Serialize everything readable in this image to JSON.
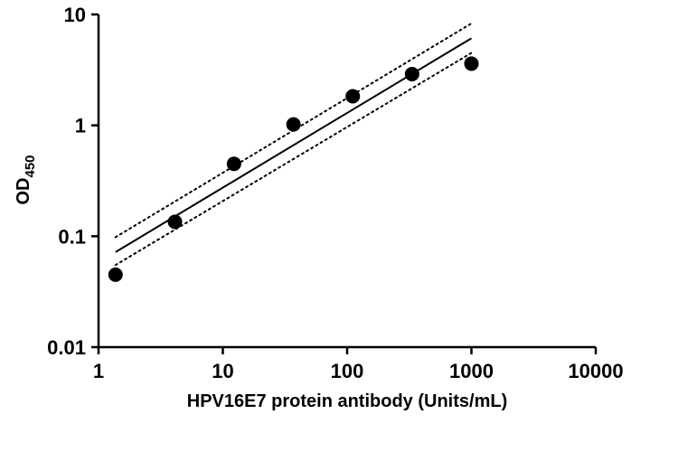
{
  "chart_data": {
    "type": "scatter",
    "title": "",
    "xlabel": "HPV16E7 protein antibody (Units/mL)",
    "ylabel_main": "OD",
    "ylabel_sub": "450",
    "xscale": "log",
    "yscale": "log",
    "xlim": [
      1,
      10000
    ],
    "ylim": [
      0.01,
      10
    ],
    "xticks": [
      {
        "value": 1,
        "label": "1"
      },
      {
        "value": 10,
        "label": "10"
      },
      {
        "value": 100,
        "label": "100"
      },
      {
        "value": 1000,
        "label": "1000"
      },
      {
        "value": 10000,
        "label": "10000"
      }
    ],
    "yticks": [
      {
        "value": 0.01,
        "label": "0.01"
      },
      {
        "value": 0.1,
        "label": "0.1"
      },
      {
        "value": 1,
        "label": "1"
      },
      {
        "value": 10,
        "label": "10"
      }
    ],
    "grid": false,
    "legend": "none",
    "points": {
      "x": [
        1.37,
        4.12,
        12.3,
        37.0,
        111,
        333,
        1000
      ],
      "y": [
        0.045,
        0.135,
        0.45,
        1.02,
        1.83,
        2.9,
        3.6
      ]
    },
    "fit_line": {
      "x": [
        1.37,
        1000
      ],
      "y": [
        0.072,
        6.1
      ]
    },
    "confidence_band_upper": {
      "x": [
        1.37,
        1000
      ],
      "y": [
        0.098,
        8.3
      ]
    },
    "confidence_band_lower": {
      "x": [
        1.37,
        1000
      ],
      "y": [
        0.055,
        4.5
      ]
    },
    "colors": {
      "axis": "#000000",
      "points": "#000000",
      "fit": "#000000"
    }
  }
}
